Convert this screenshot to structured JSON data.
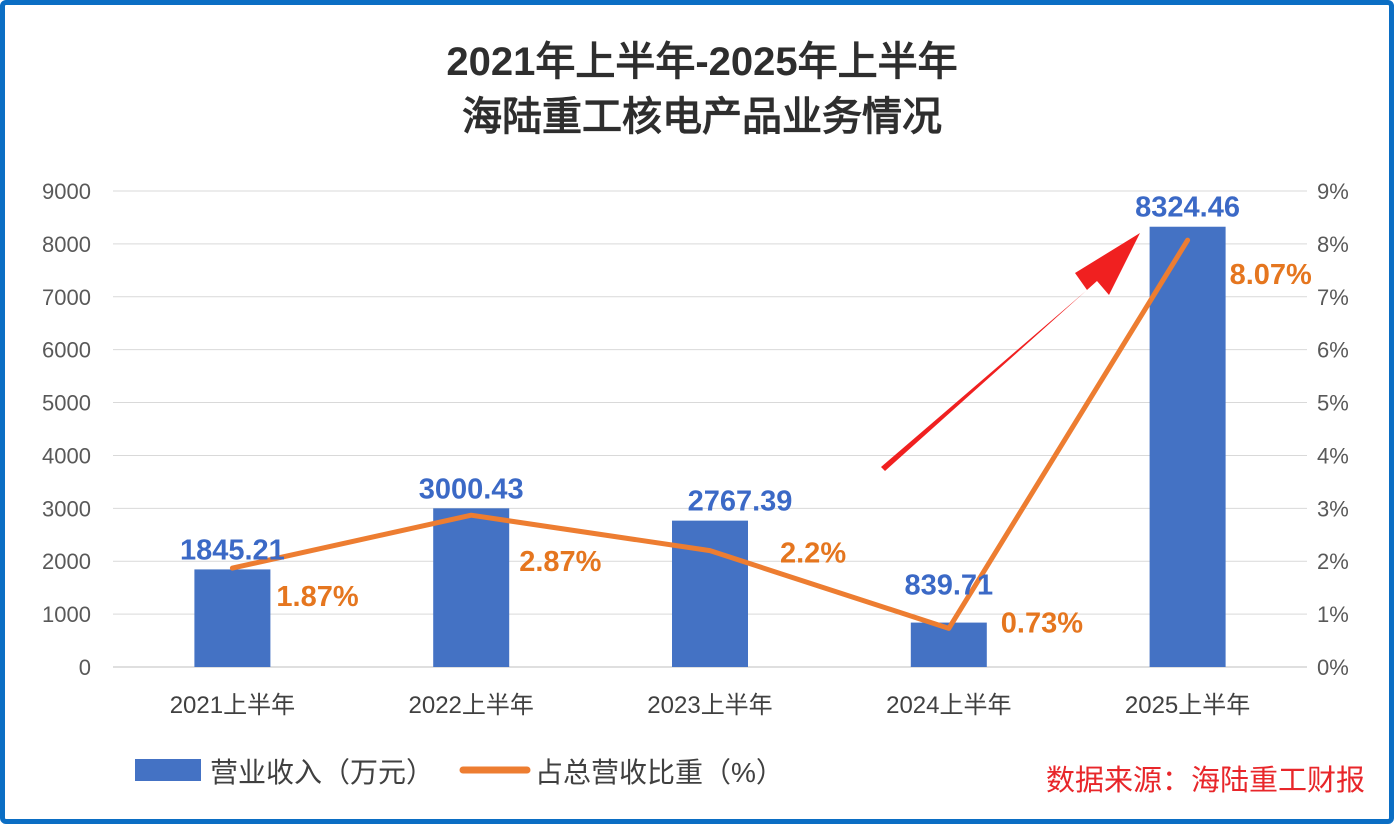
{
  "chart_data": {
    "type": "bar+line",
    "title": [
      "2021年上半年-2025年上半年",
      "海陆重工核电产品业务情况"
    ],
    "categories": [
      "2021上半年",
      "2022上半年",
      "2023上半年",
      "2024上半年",
      "2025上半年"
    ],
    "series": [
      {
        "name": "营业收入（万元）",
        "type": "bar",
        "axis": "left",
        "values": [
          1845.21,
          3000.43,
          2767.39,
          839.71,
          8324.46
        ],
        "labels": [
          "1845.21",
          "3000.43",
          "2767.39",
          "839.71",
          "8324.46"
        ],
        "color": "#4472c4"
      },
      {
        "name": "占总营收比重（%）",
        "type": "line",
        "axis": "right",
        "values": [
          1.87,
          2.87,
          2.2,
          0.73,
          8.07
        ],
        "labels": [
          "1.87%",
          "2.87%",
          "2.2%",
          "0.73%",
          "8.07%"
        ],
        "color": "#ed7d31"
      }
    ],
    "left_axis": {
      "range": [
        0,
        9000
      ],
      "ticks": [
        "0",
        "1000",
        "2000",
        "3000",
        "4000",
        "5000",
        "6000",
        "7000",
        "8000",
        "9000"
      ]
    },
    "right_axis": {
      "range": [
        0,
        9
      ],
      "ticks": [
        "0%",
        "1%",
        "2%",
        "3%",
        "4%",
        "5%",
        "6%",
        "7%",
        "8%",
        "9%"
      ]
    },
    "grid": true,
    "legend": "bottom-left",
    "source": "数据来源：海陆重工财报",
    "annotation": "red-arrow-up-right",
    "annotation_color": "#f02020"
  }
}
